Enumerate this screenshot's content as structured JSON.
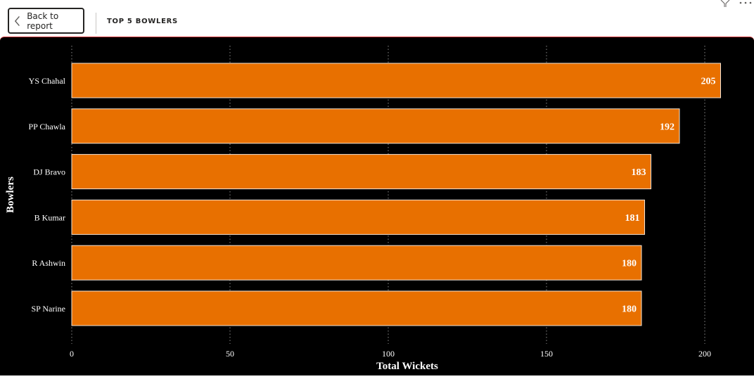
{
  "header": {
    "back_label": "Back to report",
    "page_title": "TOP 5 BOWLERS"
  },
  "icons": {
    "back": "chevron-left-icon",
    "filter": "filter-icon",
    "more": "more-options-icon"
  },
  "colors": {
    "bar": "#E87000",
    "bar_border": "#F2E3D5",
    "background": "#000000",
    "text": "#FFFFFF",
    "grid": "#8A8A8A"
  },
  "chart_data": {
    "type": "bar",
    "orientation": "horizontal",
    "categories": [
      "YS Chahal",
      "PP Chawla",
      "DJ Bravo",
      "B Kumar",
      "R Ashwin",
      "SP Narine"
    ],
    "values": [
      205,
      192,
      183,
      181,
      180,
      180
    ],
    "xlabel": "Total Wickets",
    "ylabel": "Bowlers",
    "xlim": [
      0,
      200
    ],
    "xticks": [
      0,
      50,
      100,
      150,
      200
    ],
    "data_labels": true,
    "grid": "vertical dotted"
  }
}
